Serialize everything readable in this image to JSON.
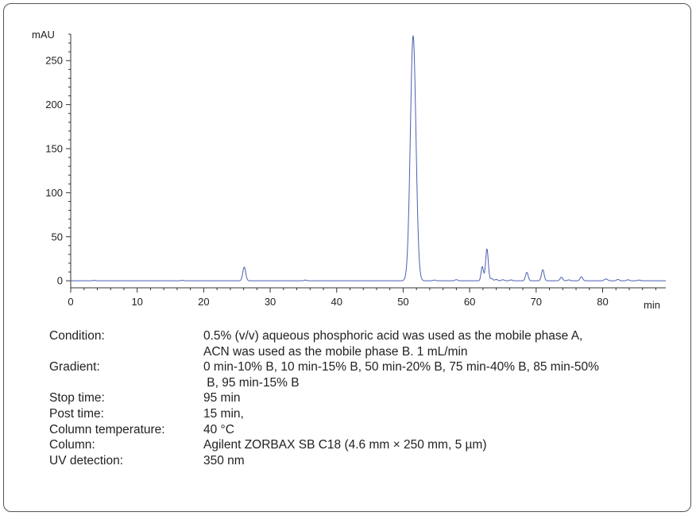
{
  "colors": {
    "trace": "#4a5fb0",
    "axis": "#333333",
    "frame": "#555555"
  },
  "chart_data": {
    "type": "line",
    "title": "",
    "xlabel": "min",
    "ylabel": "mAU",
    "xlim": [
      0,
      89.5
    ],
    "ylim": [
      -8,
      280
    ],
    "x_ticks": [
      0,
      10,
      20,
      30,
      40,
      50,
      60,
      70,
      80
    ],
    "y_ticks": [
      0,
      50,
      100,
      150,
      200,
      250
    ],
    "x_tick_labels": [
      "0",
      "10",
      "20",
      "30",
      "40",
      "50",
      "60",
      "70",
      "80"
    ],
    "y_tick_labels": [
      "0",
      "50",
      "100",
      "150",
      "200",
      "250"
    ],
    "x_minor_step": 2,
    "y_minor_step": 10,
    "grid": false,
    "legend": "none",
    "baseline": 0,
    "peaks": [
      {
        "rt": 3.5,
        "height": 0.6,
        "width": 0.15
      },
      {
        "rt": 16.8,
        "height": 0.6,
        "width": 0.15
      },
      {
        "rt": 26.1,
        "height": 15.5,
        "width": 0.22
      },
      {
        "rt": 35.3,
        "height": 0.8,
        "width": 0.2
      },
      {
        "rt": 51.5,
        "height": 278,
        "width": 0.42
      },
      {
        "rt": 54.7,
        "height": 0.8,
        "width": 0.2
      },
      {
        "rt": 58.0,
        "height": 1.3,
        "width": 0.2
      },
      {
        "rt": 61.9,
        "height": 16,
        "width": 0.18
      },
      {
        "rt": 62.6,
        "height": 36,
        "width": 0.2
      },
      {
        "rt": 63.3,
        "height": 2.5,
        "width": 0.2
      },
      {
        "rt": 64.0,
        "height": 1.5,
        "width": 0.2
      },
      {
        "rt": 65.0,
        "height": 1.2,
        "width": 0.2
      },
      {
        "rt": 66.2,
        "height": 1.0,
        "width": 0.2
      },
      {
        "rt": 68.6,
        "height": 9.5,
        "width": 0.2
      },
      {
        "rt": 71.0,
        "height": 12.5,
        "width": 0.2
      },
      {
        "rt": 73.8,
        "height": 4,
        "width": 0.2
      },
      {
        "rt": 74.9,
        "height": 1.0,
        "width": 0.2
      },
      {
        "rt": 76.8,
        "height": 4.5,
        "width": 0.2
      },
      {
        "rt": 80.5,
        "height": 2,
        "width": 0.25
      },
      {
        "rt": 82.3,
        "height": 1.5,
        "width": 0.2
      },
      {
        "rt": 83.8,
        "height": 1.2,
        "width": 0.2
      },
      {
        "rt": 85.5,
        "height": 0.8,
        "width": 0.2
      }
    ]
  },
  "conditions": [
    {
      "key": "Condition:",
      "lines": [
        "0.5% (v/v) aqueous phosphoric acid was used as the mobile phase A,",
        "ACN was used as the mobile phase B. 1 mL/min"
      ]
    },
    {
      "key": "Gradient:",
      "lines": [
        "0 min-10% B, 10 min-15% B, 50 min-20% B, 75 min-40% B, 85 min-50%",
        " B, 95 min-15% B"
      ]
    },
    {
      "key": "Stop time:",
      "lines": [
        "95 min"
      ]
    },
    {
      "key": "Post time:",
      "lines": [
        "15 min,"
      ]
    },
    {
      "key": "Column temperature:",
      "lines": [
        "40 °C"
      ]
    },
    {
      "key": "Column:",
      "lines": [
        "Agilent ZORBAX SB C18 (4.6 mm × 250 mm, 5 µm)"
      ]
    },
    {
      "key": "UV detection:",
      "lines": [
        "350 nm"
      ]
    }
  ]
}
